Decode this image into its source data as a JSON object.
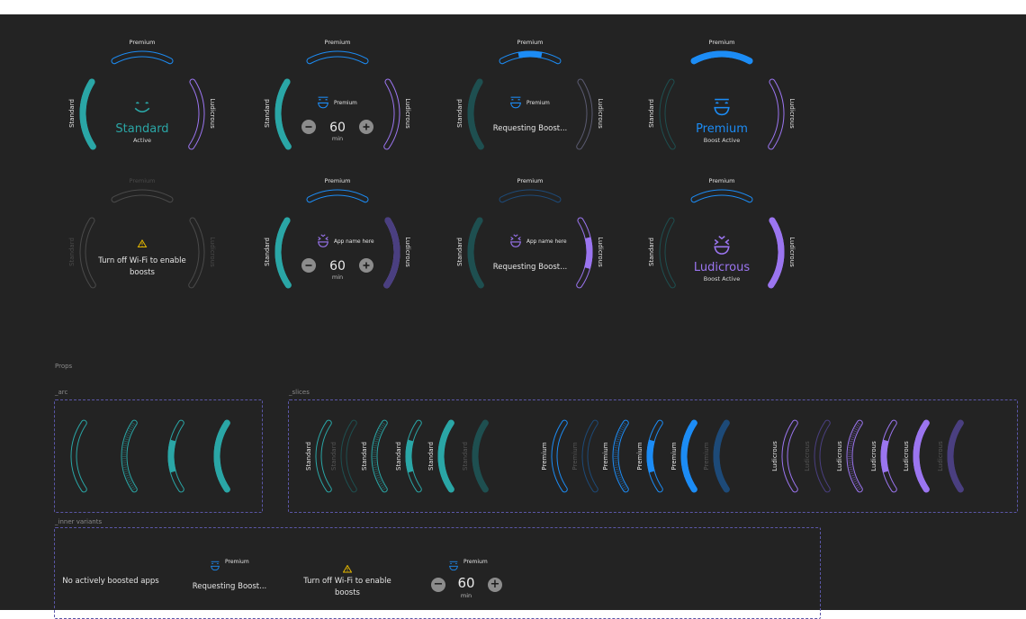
{
  "colors": {
    "standard": "#2aa6a6",
    "standard_dim": "#1e4f50",
    "premium": "#1c8cf5",
    "premium_dim": "#1d4a78",
    "ludicrous": "#9b75f0",
    "ludicrous_dim": "#4a3f80",
    "warning": "#e6b800",
    "text": "#e6e6e6",
    "disabled": "#4a4a4a"
  },
  "labels": {
    "standard": "Standard",
    "premium": "Premium",
    "ludicrous": "Ludicrous"
  },
  "gauges": [
    {
      "inner": "mode",
      "icon": "smile-icon",
      "icon_color": "#2aa6a6",
      "title": "Standard",
      "title_color": "#2aa6a6",
      "subtitle": "Active",
      "left": {
        "fill": 1,
        "color": "#2aa6a6",
        "track": "#2aa6a6"
      },
      "top": {
        "fill": 0,
        "color": "#1c8cf5",
        "track": "#1c8cf5"
      },
      "right": {
        "fill": 0,
        "color": "#9b75f0",
        "track": "#9b75f0"
      }
    },
    {
      "inner": "timer",
      "app": "Premium",
      "icon": "premium-icon",
      "value": "60",
      "unit": "min",
      "left": {
        "fill": 1,
        "color": "#2aa6a6",
        "track": "#2aa6a6"
      },
      "top": {
        "fill": 0,
        "color": "#1c8cf5",
        "track": "#1c8cf5"
      },
      "right": {
        "fill": 0,
        "color": "#9b75f0",
        "track": "#9b75f0"
      }
    },
    {
      "inner": "request",
      "app": "Premium",
      "icon": "premium-icon",
      "text": "Requesting Boost...",
      "left": {
        "fill": 1,
        "color": "#1e4f50",
        "track": "#1e4f50"
      },
      "top": {
        "fill": 0.4,
        "color": "#1c8cf5",
        "track": "#1c8cf5",
        "partial": "middle"
      },
      "right": {
        "fill": 0,
        "color": "#5a5a70",
        "track": "#5a5a70"
      }
    },
    {
      "inner": "mode",
      "icon": "premium-smile-icon",
      "icon_color": "#1c8cf5",
      "title": "Premium",
      "title_color": "#1c8cf5",
      "subtitle": "Boost Active",
      "left": {
        "fill": 0,
        "color": "#2aa6a6",
        "track": "#1e4f50"
      },
      "top": {
        "fill": 1,
        "color": "#1c8cf5",
        "track": "#1c8cf5"
      },
      "right": {
        "fill": 0,
        "color": "#9b75f0",
        "track": "#9b75f0"
      }
    },
    {
      "inner": "warning",
      "text": "Turn off Wi-Fi to enable boosts",
      "disabled": true,
      "left": {
        "fill": 0,
        "color": "#4a4a4a",
        "track": "#4a4a4a"
      },
      "top": {
        "fill": 0,
        "color": "#4a4a4a",
        "track": "#4a4a4a"
      },
      "right": {
        "fill": 0,
        "color": "#4a4a4a",
        "track": "#4a4a4a"
      }
    },
    {
      "inner": "timer",
      "app": "App name here",
      "icon": "ludicrous-icon",
      "value": "60",
      "unit": "min",
      "left": {
        "fill": 1,
        "color": "#2aa6a6",
        "track": "#2aa6a6"
      },
      "top": {
        "fill": 0,
        "color": "#1c8cf5",
        "track": "#1c8cf5"
      },
      "right": {
        "fill": 1,
        "color": "#4a3f80",
        "track": "#9b75f0"
      }
    },
    {
      "inner": "request",
      "app": "App name here",
      "icon": "ludicrous-icon",
      "text": "Requesting Boost...",
      "left": {
        "fill": 1,
        "color": "#1e4f50",
        "track": "#1e4f50"
      },
      "top": {
        "fill": 0,
        "color": "#1d4a78",
        "track": "#1d4a78"
      },
      "right": {
        "fill": 0.45,
        "color": "#9b75f0",
        "track": "#9b75f0",
        "partial": "middle"
      }
    },
    {
      "inner": "mode",
      "icon": "ludicrous-face-icon",
      "icon_color": "#9b75f0",
      "title": "Ludicrous",
      "title_color": "#9b75f0",
      "subtitle": "Boost Active",
      "left": {
        "fill": 0,
        "color": "#2aa6a6",
        "track": "#1e4f50"
      },
      "top": {
        "fill": 0,
        "color": "#1c8cf5",
        "track": "#1c8cf5"
      },
      "right": {
        "fill": 1,
        "color": "#9b75f0",
        "track": "#9b75f0"
      }
    }
  ],
  "props_label": "Props",
  "arc_label": "_arc",
  "slices_label": "_slices",
  "inner_variants_label": "_inner variants",
  "arc_variants": [
    {
      "fill": 0,
      "color": "#2aa6a6"
    },
    {
      "fill": 0,
      "color": "#2aa6a6",
      "dotted": true
    },
    {
      "fill": 0.45,
      "color": "#2aa6a6",
      "partial": "middle"
    },
    {
      "fill": 1,
      "color": "#2aa6a6"
    }
  ],
  "slices": [
    {
      "label": "Standard",
      "fill": 0,
      "color": "#2aa6a6",
      "track": "#2aa6a6"
    },
    {
      "label": "Standard",
      "fill": 0,
      "color": "#2aa6a6",
      "track": "#1e4f50",
      "dim_label": true
    },
    {
      "label": "Standard",
      "fill": 0,
      "color": "#2aa6a6",
      "track": "#2aa6a6",
      "dotted": true
    },
    {
      "label": "Standard",
      "fill": 0.45,
      "color": "#2aa6a6",
      "track": "#2aa6a6",
      "partial": "middle"
    },
    {
      "label": "Standard",
      "fill": 1,
      "color": "#2aa6a6",
      "track": "#2aa6a6"
    },
    {
      "label": "Standard",
      "fill": 1,
      "color": "#1e4f50",
      "track": "#1e4f50",
      "dim_label": true
    },
    {
      "label": "Premium",
      "fill": 0,
      "color": "#1c8cf5",
      "track": "#1c8cf5"
    },
    {
      "label": "Premium",
      "fill": 0,
      "color": "#1c8cf5",
      "track": "#1d4a78",
      "dim_label": true
    },
    {
      "label": "Premium",
      "fill": 0,
      "color": "#1c8cf5",
      "track": "#1c8cf5",
      "dotted": true
    },
    {
      "label": "Premium",
      "fill": 0.45,
      "color": "#1c8cf5",
      "track": "#1c8cf5",
      "partial": "middle"
    },
    {
      "label": "Premium",
      "fill": 1,
      "color": "#1c8cf5",
      "track": "#1c8cf5"
    },
    {
      "label": "Premium",
      "fill": 1,
      "color": "#1d4a78",
      "track": "#1d4a78",
      "dim_label": true
    },
    {
      "label": "Ludicrous",
      "fill": 0,
      "color": "#9b75f0",
      "track": "#9b75f0"
    },
    {
      "label": "Ludicrous",
      "fill": 0,
      "color": "#9b75f0",
      "track": "#4a3f80",
      "dim_label": true
    },
    {
      "label": "Ludicrous",
      "fill": 0,
      "color": "#9b75f0",
      "track": "#9b75f0",
      "dotted": true
    },
    {
      "label": "Ludicrous",
      "fill": 0.45,
      "color": "#9b75f0",
      "track": "#9b75f0",
      "partial": "middle"
    },
    {
      "label": "Ludicrous",
      "fill": 1,
      "color": "#9b75f0",
      "track": "#9b75f0"
    },
    {
      "label": "Ludicrous",
      "fill": 1,
      "color": "#4a3f80",
      "track": "#4a3f80",
      "dim_label": true
    }
  ],
  "inner_variants": {
    "none": "No actively boosted apps",
    "request": {
      "app": "Premium",
      "text": "Requesting Boost..."
    },
    "warning": "Turn off Wi-Fi to enable boosts",
    "timer": {
      "app": "Premium",
      "value": "60",
      "unit": "min"
    }
  }
}
